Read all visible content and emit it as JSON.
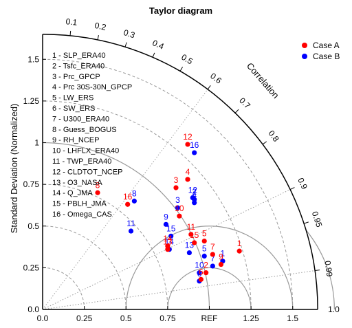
{
  "chart_data": {
    "type": "scatter",
    "subtype": "taylor_diagram",
    "title": "Taylor diagram",
    "ylabel": "Standard Deviation (Normalized)",
    "xlabel": "",
    "ref_label": "REF",
    "corr_axis_label": "Correlation",
    "std_max": 1.65,
    "std_ticks": [
      0.0,
      0.25,
      0.5,
      0.75,
      1.0,
      1.25,
      1.5
    ],
    "x_tick_labels": [
      "0.0",
      "0.25",
      "0.5",
      "0.75",
      "REF",
      "1.25",
      "1.5"
    ],
    "y_tick_labels": [
      "0.0",
      "0.25",
      "0.5",
      "0.75",
      "1",
      "1.25",
      "1.5"
    ],
    "corr_ticks": [
      0.1,
      0.2,
      0.3,
      0.4,
      0.5,
      0.6,
      0.7,
      0.8,
      0.9,
      0.95,
      0.99,
      1.0
    ],
    "corr_tick_labels": [
      "0.1",
      "0.2",
      "0.3",
      "0.4",
      "0.5",
      "0.6",
      "0.7",
      "0.8",
      "0.9",
      "0.95",
      "0.99",
      "1.0"
    ],
    "corr_dotted_lines": [
      0.6,
      0.9,
      0.99
    ],
    "rms_arcs": [
      0.25,
      0.5,
      0.75
    ],
    "legend": [
      {
        "name": "Case A",
        "color": "#ff0000"
      },
      {
        "name": "Case B",
        "color": "#0000ff"
      }
    ],
    "legend_position": "top-right",
    "variables": [
      "1 - SLP_ERA40",
      "2 - Tsfc_ERA40",
      "3 - Prc_GPCP",
      "4 - Prc 30S-30N_GPCP",
      "5 - LW_ERS",
      "6 - SW_ERS",
      "7 - U300_ERA40",
      "8 - Guess_BOGUS",
      "9 - RH_NCEP",
      "10 - LHFLX_ERA40",
      "11 - TWP_ERA40",
      "12 - CLDTOT_NCEP",
      "13 - O3_NASA",
      "14 - Q_JMA",
      "15 - PBLH_JMA",
      "16 - Omega_CAS"
    ],
    "series": [
      {
        "name": "Case A",
        "color": "#ff0000",
        "points": [
          {
            "label": "1",
            "x": 1.18,
            "y": 0.35
          },
          {
            "label": "2",
            "x": 0.98,
            "y": 0.22
          },
          {
            "label": "3",
            "x": 0.8,
            "y": 0.73
          },
          {
            "label": "4",
            "x": 0.87,
            "y": 0.78
          },
          {
            "label": "5",
            "x": 0.97,
            "y": 0.41
          },
          {
            "label": "6",
            "x": 0.95,
            "y": 0.18
          },
          {
            "label": "7",
            "x": 1.02,
            "y": 0.33
          },
          {
            "label": "8",
            "x": 0.33,
            "y": 0.7
          },
          {
            "label": "9",
            "x": 1.07,
            "y": 0.27
          },
          {
            "label": "10",
            "x": 0.82,
            "y": 0.56
          },
          {
            "label": "11",
            "x": 0.89,
            "y": 0.45
          },
          {
            "label": "12",
            "x": 0.87,
            "y": 0.99
          },
          {
            "label": "13",
            "x": 0.75,
            "y": 0.36
          },
          {
            "label": "14",
            "x": 0.75,
            "y": 0.38
          },
          {
            "label": "15",
            "x": 0.91,
            "y": 0.4
          },
          {
            "label": "16",
            "x": 0.51,
            "y": 0.63
          }
        ]
      },
      {
        "name": "Case B",
        "color": "#0000ff",
        "points": [
          {
            "label": "1",
            "x": 1.08,
            "y": 0.29
          },
          {
            "label": "2",
            "x": 0.91,
            "y": 0.66
          },
          {
            "label": "3",
            "x": 0.81,
            "y": 0.61
          },
          {
            "label": "4",
            "x": 0.91,
            "y": 0.64
          },
          {
            "label": "5",
            "x": 0.97,
            "y": 0.32
          },
          {
            "label": "6",
            "x": 0.94,
            "y": 0.17
          },
          {
            "label": "7",
            "x": 1.02,
            "y": 0.26
          },
          {
            "label": "8",
            "x": 0.55,
            "y": 0.65
          },
          {
            "label": "9",
            "x": 0.74,
            "y": 0.51
          },
          {
            "label": "10",
            "x": 0.94,
            "y": 0.22
          },
          {
            "label": "11",
            "x": 0.53,
            "y": 0.47
          },
          {
            "label": "12",
            "x": 0.9,
            "y": 0.67
          },
          {
            "label": "13",
            "x": 0.88,
            "y": 0.34
          },
          {
            "label": "14",
            "x": 0.76,
            "y": 0.36
          },
          {
            "label": "15",
            "x": 0.77,
            "y": 0.44
          },
          {
            "label": "16",
            "x": 0.91,
            "y": 0.94
          }
        ]
      }
    ]
  }
}
